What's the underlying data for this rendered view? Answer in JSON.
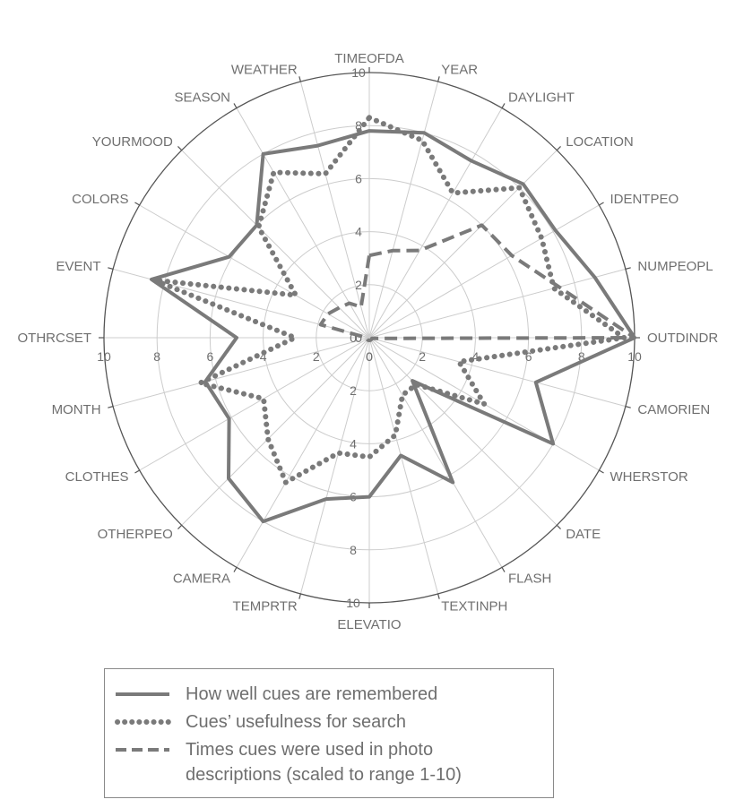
{
  "chart_data": {
    "type": "radar",
    "r_range": [
      0,
      10
    ],
    "r_ticks": [
      "0",
      "2",
      "4",
      "6",
      "8",
      "10"
    ],
    "categories": [
      "TIMEOFDA",
      "YEAR",
      "DAYLIGHT",
      "LOCATION",
      "IDENTPEO",
      "NUMPEOPL",
      "OUTDINDR",
      "CAMORIEN",
      "WHERSTOR",
      "DATE",
      "FLASH",
      "TEXTINPH",
      "ELEVATIO",
      "TEMPRTR",
      "CAMERA",
      "OTHERPEO",
      "CLOTHES",
      "MONTH",
      "OTHRCSET",
      "EVENT",
      "COLORS",
      "YOURMOOD",
      "SEASON",
      "WEATHER"
    ],
    "series": [
      {
        "name": "How well cues are remembered",
        "style": "solid",
        "values": [
          7.8,
          8.0,
          7.7,
          8.2,
          8.1,
          8.8,
          10.0,
          6.5,
          8.0,
          2.3,
          6.3,
          4.6,
          6.0,
          6.3,
          8.0,
          7.5,
          6.1,
          6.4,
          5.0,
          8.5,
          6.1,
          6.0,
          8.0,
          7.5
        ]
      },
      {
        "name": "Cues' usefulness for search",
        "style": "dotted",
        "values": [
          8.3,
          7.7,
          6.3,
          8.0,
          7.5,
          7.2,
          9.6,
          3.5,
          5.0,
          2.5,
          2.5,
          3.8,
          4.5,
          4.5,
          6.3,
          5.4,
          4.6,
          6.6,
          2.8,
          8.4,
          3.2,
          5.9,
          7.2,
          6.4
        ]
      },
      {
        "name": "Times cues were used in photo descriptions (scaled to range 1-10)",
        "style": "dashed",
        "values": [
          3.1,
          3.4,
          3.8,
          6.0,
          6.2,
          7.4,
          10.0,
          0.1,
          0.1,
          0.1,
          0.1,
          0.1,
          0.1,
          0.1,
          0.1,
          0.1,
          0.1,
          0.1,
          0.1,
          1.9,
          1.8,
          1.6,
          1.5,
          1.2
        ]
      }
    ]
  },
  "legend": {
    "items": [
      {
        "lines": [
          "How well cues are remembered"
        ]
      },
      {
        "lines": [
          "Cues’ usefulness for search"
        ]
      },
      {
        "lines": [
          "Times cues were used in photo",
          "descriptions (scaled to range 1-10)"
        ]
      }
    ]
  },
  "colors": {
    "series": "#7a7a7a",
    "grid": "#cccccc",
    "outer": "#555555",
    "text": "#6f6f6f"
  }
}
